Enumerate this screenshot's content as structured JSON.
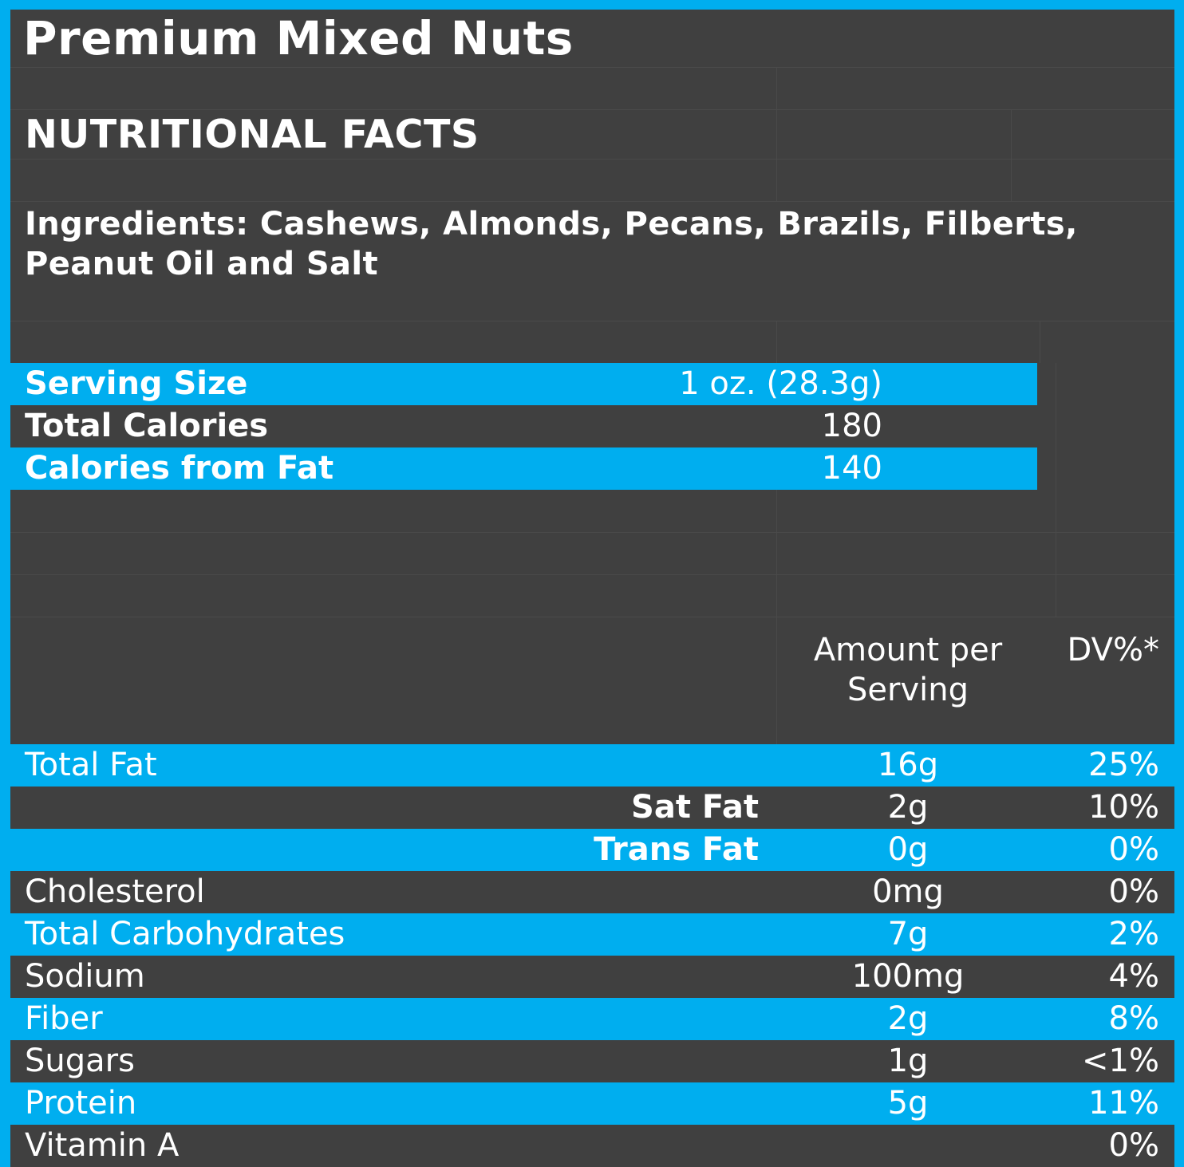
{
  "title": "Premium Mixed Nuts",
  "heading": "NUTRITIONAL FACTS",
  "ingredients": "Ingredients: Cashews, Almonds, Pecans, Brazils, Filberts, Peanut Oil and Salt",
  "summary": [
    {
      "label": "Serving Size",
      "value": "1 oz. (28.3g)"
    },
    {
      "label": "Total Calories",
      "value": "180"
    },
    {
      "label": "Calories from Fat",
      "value": "140"
    }
  ],
  "columns": {
    "amount": "Amount per Serving",
    "dv": "DV%*"
  },
  "nutrients": [
    {
      "label": "Total Fat",
      "amount": "16g",
      "dv": "25%"
    },
    {
      "label": "Sat Fat",
      "amount": "2g",
      "dv": "10%"
    },
    {
      "label": "Trans Fat",
      "amount": "0g",
      "dv": "0%"
    },
    {
      "label": "Cholesterol",
      "amount": "0mg",
      "dv": "0%"
    },
    {
      "label": "Total Carbohydrates",
      "amount": "7g",
      "dv": "2%"
    },
    {
      "label": "Sodium",
      "amount": "100mg",
      "dv": "4%"
    },
    {
      "label": "Fiber",
      "amount": "2g",
      "dv": "8%"
    },
    {
      "label": "Sugars",
      "amount": "1g",
      "dv": "<1%"
    },
    {
      "label": "Protein",
      "amount": "5g",
      "dv": "11%"
    },
    {
      "label": "Vitamin A",
      "amount": "",
      "dv": "0%"
    }
  ],
  "colors": {
    "accent": "#00AEEF",
    "background": "#404040",
    "text": "#FFFFFF"
  }
}
